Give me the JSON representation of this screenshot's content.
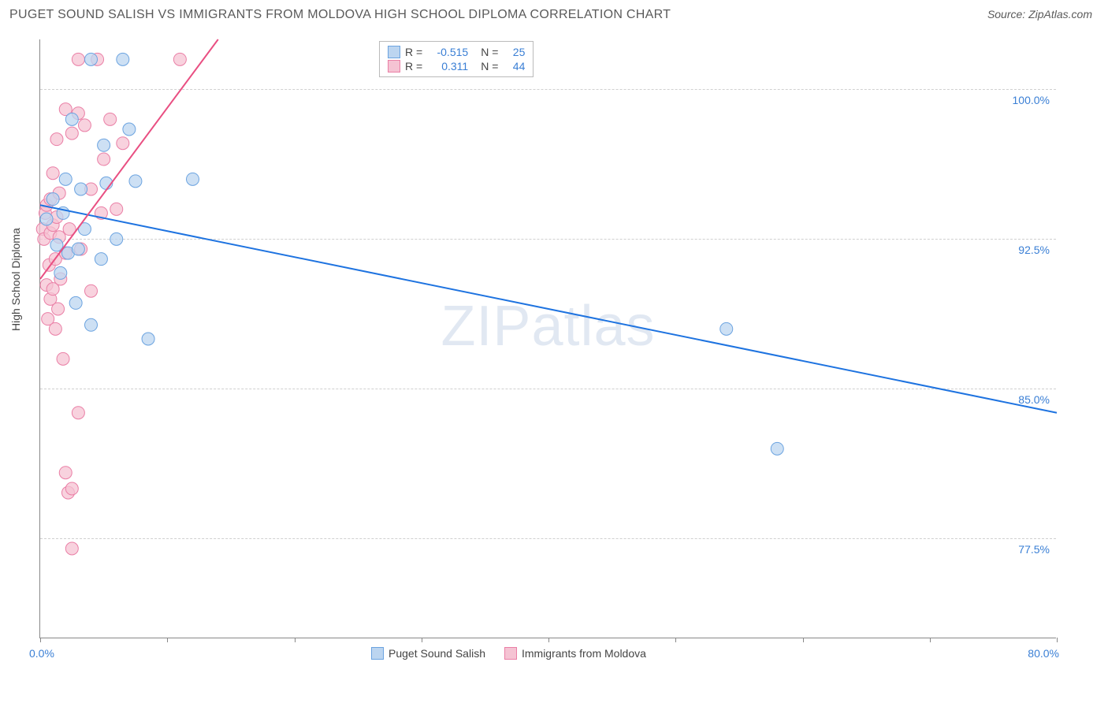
{
  "header": {
    "title": "PUGET SOUND SALISH VS IMMIGRANTS FROM MOLDOVA HIGH SCHOOL DIPLOMA CORRELATION CHART",
    "source": "Source: ZipAtlas.com"
  },
  "ylabel": "High School Diploma",
  "watermark_a": "ZIP",
  "watermark_b": "atlas",
  "chart": {
    "type": "scatter",
    "xlim": [
      0,
      80
    ],
    "ylim": [
      72.5,
      102.5
    ],
    "ytick_labels": [
      "77.5%",
      "85.0%",
      "92.5%",
      "100.0%"
    ],
    "ytick_values": [
      77.5,
      85.0,
      92.5,
      100.0
    ],
    "xtick_labels": [
      "0.0%",
      "80.0%"
    ],
    "xtick_values": [
      0,
      80
    ],
    "xtick_marks": [
      0,
      10,
      20,
      30,
      40,
      50,
      60,
      70,
      80
    ],
    "grid_color": "#d0d0d0",
    "background_color": "#ffffff",
    "marker_radius": 8,
    "series": [
      {
        "name": "Puget Sound Salish",
        "fill": "#bcd5f0",
        "stroke": "#6ba3e0",
        "r_value": "-0.515",
        "n_value": "25",
        "trend": {
          "x1": 0,
          "y1": 94.2,
          "x2": 80,
          "y2": 83.8,
          "color": "#1e73e0",
          "width": 2
        },
        "points": [
          [
            0.5,
            93.5
          ],
          [
            1.0,
            94.5
          ],
          [
            1.3,
            92.2
          ],
          [
            1.6,
            90.8
          ],
          [
            1.8,
            93.8
          ],
          [
            2.0,
            95.5
          ],
          [
            2.2,
            91.8
          ],
          [
            2.5,
            98.5
          ],
          [
            2.8,
            89.3
          ],
          [
            3.0,
            92.0
          ],
          [
            3.2,
            95.0
          ],
          [
            3.5,
            93.0
          ],
          [
            4.0,
            88.2
          ],
          [
            4.0,
            101.5
          ],
          [
            4.8,
            91.5
          ],
          [
            5.0,
            97.2
          ],
          [
            5.2,
            95.3
          ],
          [
            6.0,
            92.5
          ],
          [
            6.5,
            101.5
          ],
          [
            7.0,
            98.0
          ],
          [
            7.5,
            95.4
          ],
          [
            8.5,
            87.5
          ],
          [
            12.0,
            95.5
          ],
          [
            54.0,
            88.0
          ],
          [
            58.0,
            82.0
          ]
        ]
      },
      {
        "name": "Immigants from Moldova",
        "legend_name": "Immigrants from Moldova",
        "fill": "#f5c3d3",
        "stroke": "#ea7fa6",
        "r_value": "0.311",
        "n_value": "44",
        "trend": {
          "x1": 0,
          "y1": 90.5,
          "x2": 14,
          "y2": 102.5,
          "color": "#e94f82",
          "width": 2
        },
        "points": [
          [
            0.2,
            93.0
          ],
          [
            0.3,
            92.5
          ],
          [
            0.4,
            93.8
          ],
          [
            0.5,
            90.2
          ],
          [
            0.5,
            94.2
          ],
          [
            0.6,
            88.5
          ],
          [
            0.7,
            91.2
          ],
          [
            0.8,
            92.8
          ],
          [
            0.8,
            89.5
          ],
          [
            0.8,
            94.5
          ],
          [
            1.0,
            90.0
          ],
          [
            1.0,
            93.2
          ],
          [
            1.0,
            95.8
          ],
          [
            1.2,
            91.5
          ],
          [
            1.2,
            88.0
          ],
          [
            1.3,
            97.5
          ],
          [
            1.3,
            93.6
          ],
          [
            1.4,
            89.0
          ],
          [
            1.5,
            92.6
          ],
          [
            1.5,
            94.8
          ],
          [
            1.6,
            90.5
          ],
          [
            1.8,
            86.5
          ],
          [
            2.0,
            80.8
          ],
          [
            2.0,
            99.0
          ],
          [
            2.0,
            91.8
          ],
          [
            2.2,
            79.8
          ],
          [
            2.3,
            93.0
          ],
          [
            2.5,
            77.0
          ],
          [
            2.5,
            80.0
          ],
          [
            2.5,
            97.8
          ],
          [
            3.0,
            83.8
          ],
          [
            3.0,
            98.8
          ],
          [
            3.0,
            101.5
          ],
          [
            3.2,
            92.0
          ],
          [
            3.5,
            98.2
          ],
          [
            4.0,
            89.9
          ],
          [
            4.0,
            95.0
          ],
          [
            4.5,
            101.5
          ],
          [
            4.8,
            93.8
          ],
          [
            5.0,
            96.5
          ],
          [
            5.5,
            98.5
          ],
          [
            6.0,
            94.0
          ],
          [
            6.5,
            97.3
          ],
          [
            11.0,
            101.5
          ]
        ]
      }
    ]
  },
  "legend_top": {
    "r_label": "R =",
    "n_label": "N ="
  },
  "legend_bottom": {
    "s0": "Puget Sound Salish",
    "s1": "Immigrants from Moldova"
  }
}
